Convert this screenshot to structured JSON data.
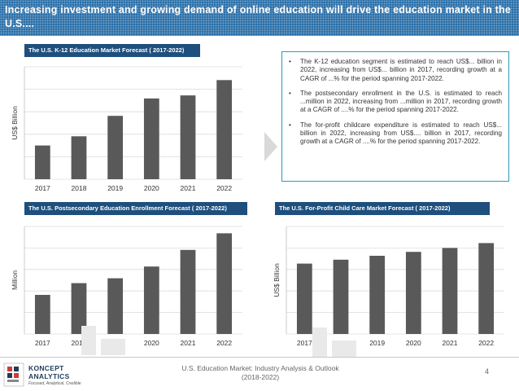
{
  "header": {
    "title": "Increasing investment and growing demand of online education will drive the education market in the U.S...."
  },
  "bullets": [
    "The K-12 education segment is estimated to reach US$... billion in 2022, increasing from US$... billion in 2017, recording growth at a CAGR of ...% for the period spanning 2017-2022.",
    "The postsecondary enrollment in the U.S. is estimated to reach ...million in 2022, increasing from ...million in 2017, recording growth at a CAGR of ....% for the period spanning 2017-2022.",
    "The for-profit childcare expenditure is estimated to reach US$... billion in 2022, increasing from US$.... billion in 2017, recording growth at a CAGR of ....% for the period spanning 2017-2022."
  ],
  "bullet_symbol": "•",
  "chart_data": [
    {
      "id": "k12",
      "type": "bar",
      "title": "The U.S. K-12 Education Market Forecast ( 2017-2022)",
      "ylabel": "US$ Billion",
      "xlabel": "",
      "categories": [
        "2017",
        "2018",
        "2019",
        "2020",
        "2021",
        "2022"
      ],
      "values": [
        33,
        42,
        62,
        79,
        82,
        97
      ],
      "ylim": [
        0,
        110
      ],
      "grid": true,
      "bar_color": "#595959"
    },
    {
      "id": "postsecondary",
      "type": "bar",
      "title": "The U.S. Postsecondary Education Enrollment Forecast ( 2017-2022)",
      "ylabel": "Million",
      "xlabel": "",
      "categories": [
        "2017",
        "2018",
        "2019",
        "2020",
        "2021",
        "2022"
      ],
      "values": [
        40,
        52,
        57,
        69,
        86,
        103
      ],
      "ylim": [
        0,
        110
      ],
      "grid": true,
      "bar_color": "#595959"
    },
    {
      "id": "childcare",
      "type": "bar",
      "title": "The U.S. For-Profit Child Care Market Forecast ( 2017-2022)",
      "ylabel": "US$ Billion",
      "xlabel": "",
      "categories": [
        "2017",
        "2018",
        "2019",
        "2020",
        "2021",
        "2022"
      ],
      "values": [
        72,
        76,
        80,
        84,
        88,
        93
      ],
      "ylim": [
        0,
        110
      ],
      "grid": true,
      "bar_color": "#595959"
    }
  ],
  "footer": {
    "logo_name": "KONCEPT",
    "logo_sub": "ANALYTICS",
    "logo_tagline": "Focused, Analytical, Credible",
    "text_line1": "U.S. Education Market: Industry Analysis & Outlook",
    "text_line2": "(2018-2022)",
    "page_number": "4"
  },
  "colors": {
    "header_bg": "#2a6fa8",
    "panel_title_bg": "#1e4f7d",
    "bar": "#595959",
    "box_border": "#2a9db5"
  }
}
